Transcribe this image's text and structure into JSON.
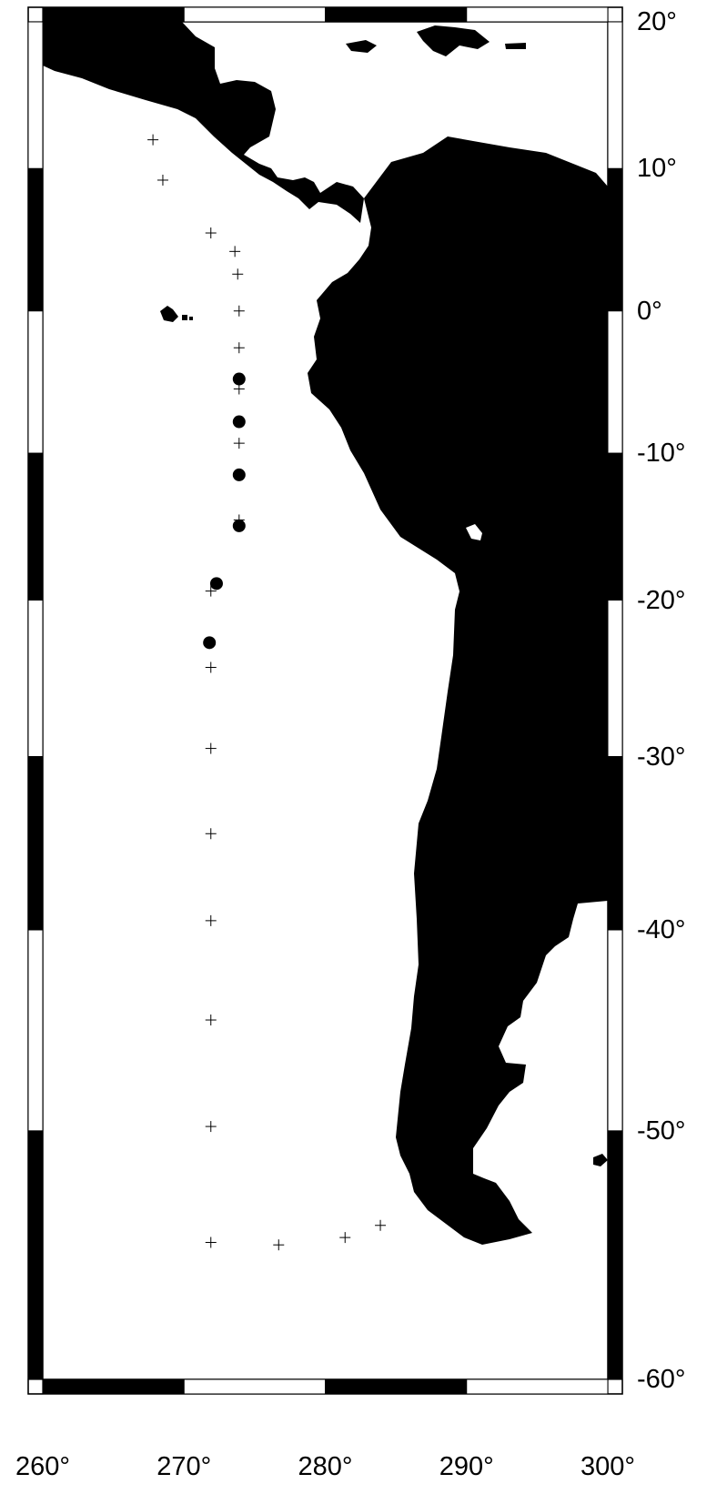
{
  "map": {
    "projection": "mercator",
    "lon_range": [
      260,
      300
    ],
    "lat_range": [
      -60,
      20
    ],
    "colors": {
      "land": "#000000",
      "water": "#ffffff",
      "frame": "#000000"
    },
    "lon_ticks": [
      "260°",
      "270°",
      "280°",
      "290°",
      "300°"
    ],
    "lat_ticks": [
      "20°",
      "10°",
      "0°",
      "-10°",
      "-20°",
      "-30°",
      "-40°",
      "-50°",
      "-60°"
    ],
    "stations_cross": [
      {
        "lon": 267.8,
        "lat": 12.0
      },
      {
        "lon": 268.5,
        "lat": 9.2
      },
      {
        "lon": 271.9,
        "lat": 5.5
      },
      {
        "lon": 273.6,
        "lat": 4.2
      },
      {
        "lon": 273.8,
        "lat": 2.6
      },
      {
        "lon": 273.9,
        "lat": 0.0
      },
      {
        "lon": 273.9,
        "lat": -2.6
      },
      {
        "lon": 273.9,
        "lat": -5.5
      },
      {
        "lon": 273.9,
        "lat": -9.3
      },
      {
        "lon": 273.9,
        "lat": -14.6
      },
      {
        "lon": 271.9,
        "lat": -19.4
      },
      {
        "lon": 271.9,
        "lat": -24.4
      },
      {
        "lon": 271.9,
        "lat": -29.5
      },
      {
        "lon": 271.9,
        "lat": -34.6
      },
      {
        "lon": 271.9,
        "lat": -39.5
      },
      {
        "lon": 271.9,
        "lat": -44.7
      },
      {
        "lon": 271.9,
        "lat": -49.8
      },
      {
        "lon": 271.9,
        "lat": -54.8
      },
      {
        "lon": 276.7,
        "lat": -54.9
      },
      {
        "lon": 281.4,
        "lat": -54.6
      },
      {
        "lon": 283.9,
        "lat": -54.1
      }
    ],
    "stations_dot": [
      {
        "lon": 273.9,
        "lat": -4.8
      },
      {
        "lon": 273.9,
        "lat": -7.8
      },
      {
        "lon": 273.9,
        "lat": -11.5
      },
      {
        "lon": 273.9,
        "lat": -15.0
      },
      {
        "lon": 272.3,
        "lat": -18.9
      },
      {
        "lon": 271.8,
        "lat": -22.8
      }
    ]
  }
}
